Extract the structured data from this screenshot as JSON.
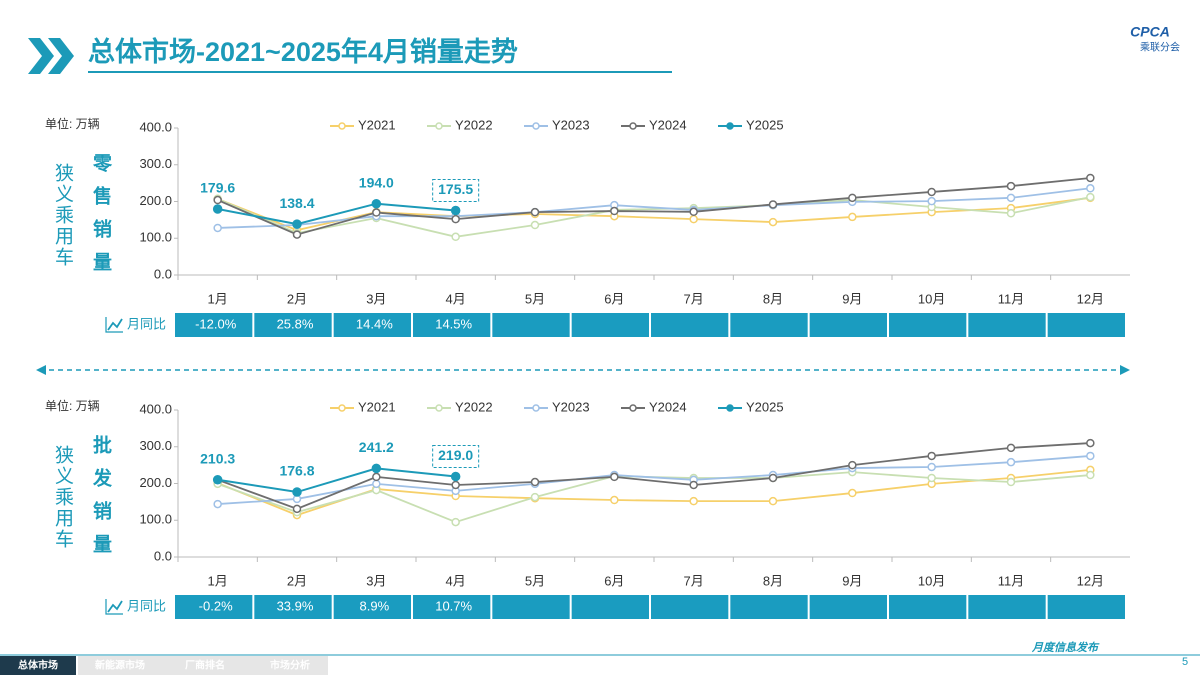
{
  "header": {
    "title": "总体市场-2021~2025年4月销量走势",
    "logo_text": "CPCA",
    "logo_sub": "乘联分会"
  },
  "footer": {
    "tabs": [
      "总体市场",
      "新能源市场",
      "厂商排名",
      "市场分析"
    ],
    "right": "月度信息发布",
    "page": "5"
  },
  "chart_data": [
    {
      "type": "line",
      "title": "零售销量",
      "side_label": "狭义乘用车",
      "unit_label": "单位: 万辆",
      "categories": [
        "1月",
        "2月",
        "3月",
        "4月",
        "5月",
        "6月",
        "7月",
        "8月",
        "9月",
        "10月",
        "11月",
        "12月"
      ],
      "ylim": [
        0,
        400
      ],
      "yticks": [
        {
          "value": 0,
          "label": "0.0"
        },
        {
          "value": 100,
          "label": "100.0"
        },
        {
          "value": 200,
          "label": "200.0"
        },
        {
          "value": 300,
          "label": "300.0"
        },
        {
          "value": 400,
          "label": "400.0"
        }
      ],
      "series": [
        {
          "name": "Y2021",
          "color": "#f6d06a",
          "values": [
            207,
            122,
            171,
            160,
            166,
            160,
            152,
            144,
            158,
            171,
            182,
            210
          ]
        },
        {
          "name": "Y2022",
          "color": "#c8dfb2",
          "values": [
            207,
            114,
            155,
            104,
            136,
            177,
            182,
            190,
            204,
            185,
            168,
            212
          ]
        },
        {
          "name": "Y2023",
          "color": "#9fc0e6",
          "values": [
            128,
            136,
            160,
            160,
            171,
            190,
            177,
            190,
            199,
            201,
            210,
            236
          ]
        },
        {
          "name": "Y2024",
          "color": "#6e6e6e",
          "values": [
            204,
            110,
            170,
            152,
            171,
            174,
            172,
            192,
            210,
            226,
            242,
            264
          ]
        },
        {
          "name": "Y2025",
          "color": "#1c9ab8",
          "values": [
            179.6,
            138.4,
            194,
            175.5,
            null,
            null,
            null,
            null,
            null,
            null,
            null,
            null
          ],
          "value_labels": [
            "179.6",
            "138.4",
            "194.0",
            "175.5"
          ]
        }
      ],
      "yoy_label": "月同比",
      "yoy": [
        "-12.0%",
        "25.8%",
        "14.4%",
        "14.5%"
      ]
    },
    {
      "type": "line",
      "title": "批发销量",
      "side_label": "狭义乘用车",
      "unit_label": "单位: 万辆",
      "categories": [
        "1月",
        "2月",
        "3月",
        "4月",
        "5月",
        "6月",
        "7月",
        "8月",
        "9月",
        "10月",
        "11月",
        "12月"
      ],
      "ylim": [
        0,
        400
      ],
      "yticks": [
        {
          "value": 0,
          "label": "0.0"
        },
        {
          "value": 100,
          "label": "100.0"
        },
        {
          "value": 200,
          "label": "200.0"
        },
        {
          "value": 300,
          "label": "300.0"
        },
        {
          "value": 400,
          "label": "400.0"
        }
      ],
      "series": [
        {
          "name": "Y2021",
          "color": "#f6d06a",
          "values": [
            201,
            114,
            185,
            166,
            160,
            155,
            152,
            152,
            174,
            199,
            215,
            237
          ]
        },
        {
          "name": "Y2022",
          "color": "#c8dfb2",
          "values": [
            199,
            122,
            182,
            95,
            163,
            220,
            215,
            215,
            231,
            215,
            204,
            223
          ]
        },
        {
          "name": "Y2023",
          "color": "#9fc0e6",
          "values": [
            144,
            158,
            199,
            180,
            199,
            223,
            210,
            223,
            242,
            245,
            258,
            275
          ]
        },
        {
          "name": "Y2024",
          "color": "#6e6e6e",
          "values": [
            210,
            131,
            218,
            196,
            204,
            218,
            196,
            215,
            250,
            275,
            297,
            310
          ]
        },
        {
          "name": "Y2025",
          "color": "#1c9ab8",
          "values": [
            210.3,
            176.8,
            241.2,
            219,
            null,
            null,
            null,
            null,
            null,
            null,
            null,
            null
          ],
          "value_labels": [
            "210.3",
            "176.8",
            "241.2",
            "219.0"
          ]
        }
      ],
      "yoy_label": "月同比",
      "yoy": [
        "-0.2%",
        "33.9%",
        "8.9%",
        "10.7%"
      ]
    }
  ]
}
